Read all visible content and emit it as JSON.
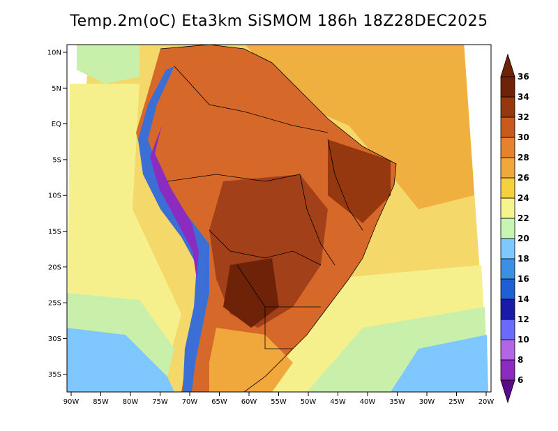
{
  "title": "Temp.2m(oC) Eta3km SiSMOM 186h 18Z28DEC2025",
  "lat_labels": [
    "10N",
    "5N",
    "EQ",
    "5S",
    "10S",
    "15S",
    "20S",
    "25S",
    "30S",
    "35S"
  ],
  "lon_labels": [
    "90W",
    "85W",
    "80W",
    "75W",
    "70W",
    "65W",
    "60W",
    "55W",
    "50W",
    "45W",
    "40W",
    "35W",
    "30W",
    "25W",
    "20W"
  ],
  "colorbar": {
    "levels": [
      "6",
      "8",
      "10",
      "12",
      "14",
      "16",
      "18",
      "20",
      "22",
      "24",
      "26",
      "28",
      "30",
      "32",
      "34",
      "36"
    ],
    "colors": [
      "#5a0a8c",
      "#8b2bbf",
      "#b266e6",
      "#6a6aff",
      "#1a1aa8",
      "#1e5fd6",
      "#3b8fe6",
      "#7fc8ff",
      "#c8f5b4",
      "#f5f58c",
      "#f5d23c",
      "#f0a83c",
      "#e6822d",
      "#c85a1e",
      "#96380f",
      "#6e2308"
    ]
  },
  "legend_colors": {
    "ocean_warm": "#f5c850",
    "ocean_mid": "#f5f08c",
    "ocean_cool": "#c8f0aa",
    "land_hot": "#c85a1e",
    "land_very_hot": "#7a2a0c",
    "andes": "#3b6fd6"
  }
}
